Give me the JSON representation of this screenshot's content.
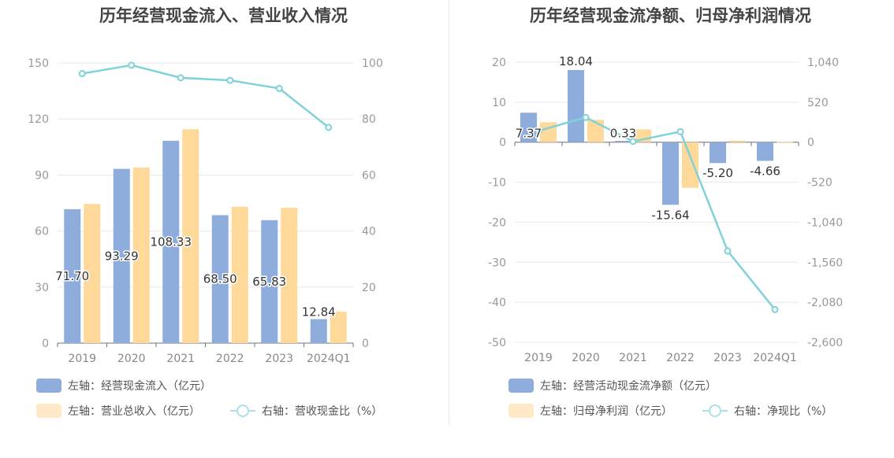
{
  "colors": {
    "blue": "#8eaddc",
    "orange": "#ffd99a",
    "teal": "#7fd2d8",
    "legend_orange": "#ffe9c6",
    "legend_teal": "#a9e1e6"
  },
  "chart_data": [
    {
      "type": "bar",
      "title": "历年经营现金流入、营业收入情况",
      "categories": [
        "2019",
        "2020",
        "2021",
        "2022",
        "2023",
        "2024Q1"
      ],
      "left_axis": {
        "ticks": [
          "0",
          "30",
          "60",
          "90",
          "120",
          "150"
        ],
        "ylim": [
          0,
          150
        ]
      },
      "right_axis": {
        "ticks": [
          "0",
          "20",
          "40",
          "60",
          "80",
          "100"
        ],
        "ylim": [
          0,
          100
        ]
      },
      "series": [
        {
          "name": "左轴：经营现金流入（亿元）",
          "type": "bar",
          "axis": "left",
          "values": [
            71.7,
            93.29,
            108.33,
            68.5,
            65.83,
            12.84
          ],
          "labels": [
            "71.70",
            "93.29",
            "108.33",
            "68.50",
            "65.83",
            "12.84"
          ]
        },
        {
          "name": "左轴：营业总收入（亿元）",
          "type": "bar",
          "axis": "left",
          "values": [
            74.5,
            94.0,
            114.5,
            73.0,
            72.5,
            16.8
          ]
        },
        {
          "name": "右轴：营收现金比（%）",
          "type": "line",
          "axis": "right",
          "values": [
            96.2,
            99.2,
            94.7,
            93.8,
            90.9,
            77.0
          ]
        }
      ]
    },
    {
      "type": "bar",
      "title": "历年经营现金流净额、归母净利润情况",
      "categories": [
        "2019",
        "2020",
        "2021",
        "2022",
        "2023",
        "2024Q1"
      ],
      "left_axis": {
        "ticks": [
          "-50",
          "-40",
          "-30",
          "-20",
          "-10",
          "0",
          "10",
          "20"
        ],
        "ylim": [
          -50,
          20
        ]
      },
      "right_axis": {
        "ticks": [
          "-2,600",
          "-2,080",
          "-1,560",
          "-1,040",
          "-520",
          "0",
          "520",
          "1,040"
        ],
        "ylim": [
          -2600,
          1040
        ]
      },
      "series": [
        {
          "name": "左轴：经营活动现金流净额（亿元）",
          "type": "bar",
          "axis": "left",
          "values": [
            7.37,
            18.04,
            0.33,
            -15.64,
            -5.2,
            -4.66
          ],
          "labels": [
            "7.37",
            "18.04",
            "0.33",
            "-15.64",
            "-5.20",
            "-4.66"
          ]
        },
        {
          "name": "左轴：归母净利润（亿元）",
          "type": "bar",
          "axis": "left",
          "values": [
            5.0,
            5.6,
            3.2,
            -11.4,
            0.4,
            0.1
          ]
        },
        {
          "name": "右轴：净现比（%）",
          "type": "line",
          "axis": "right",
          "values": [
            147,
            322,
            10,
            137,
            -1413,
            -2175
          ]
        }
      ]
    }
  ]
}
